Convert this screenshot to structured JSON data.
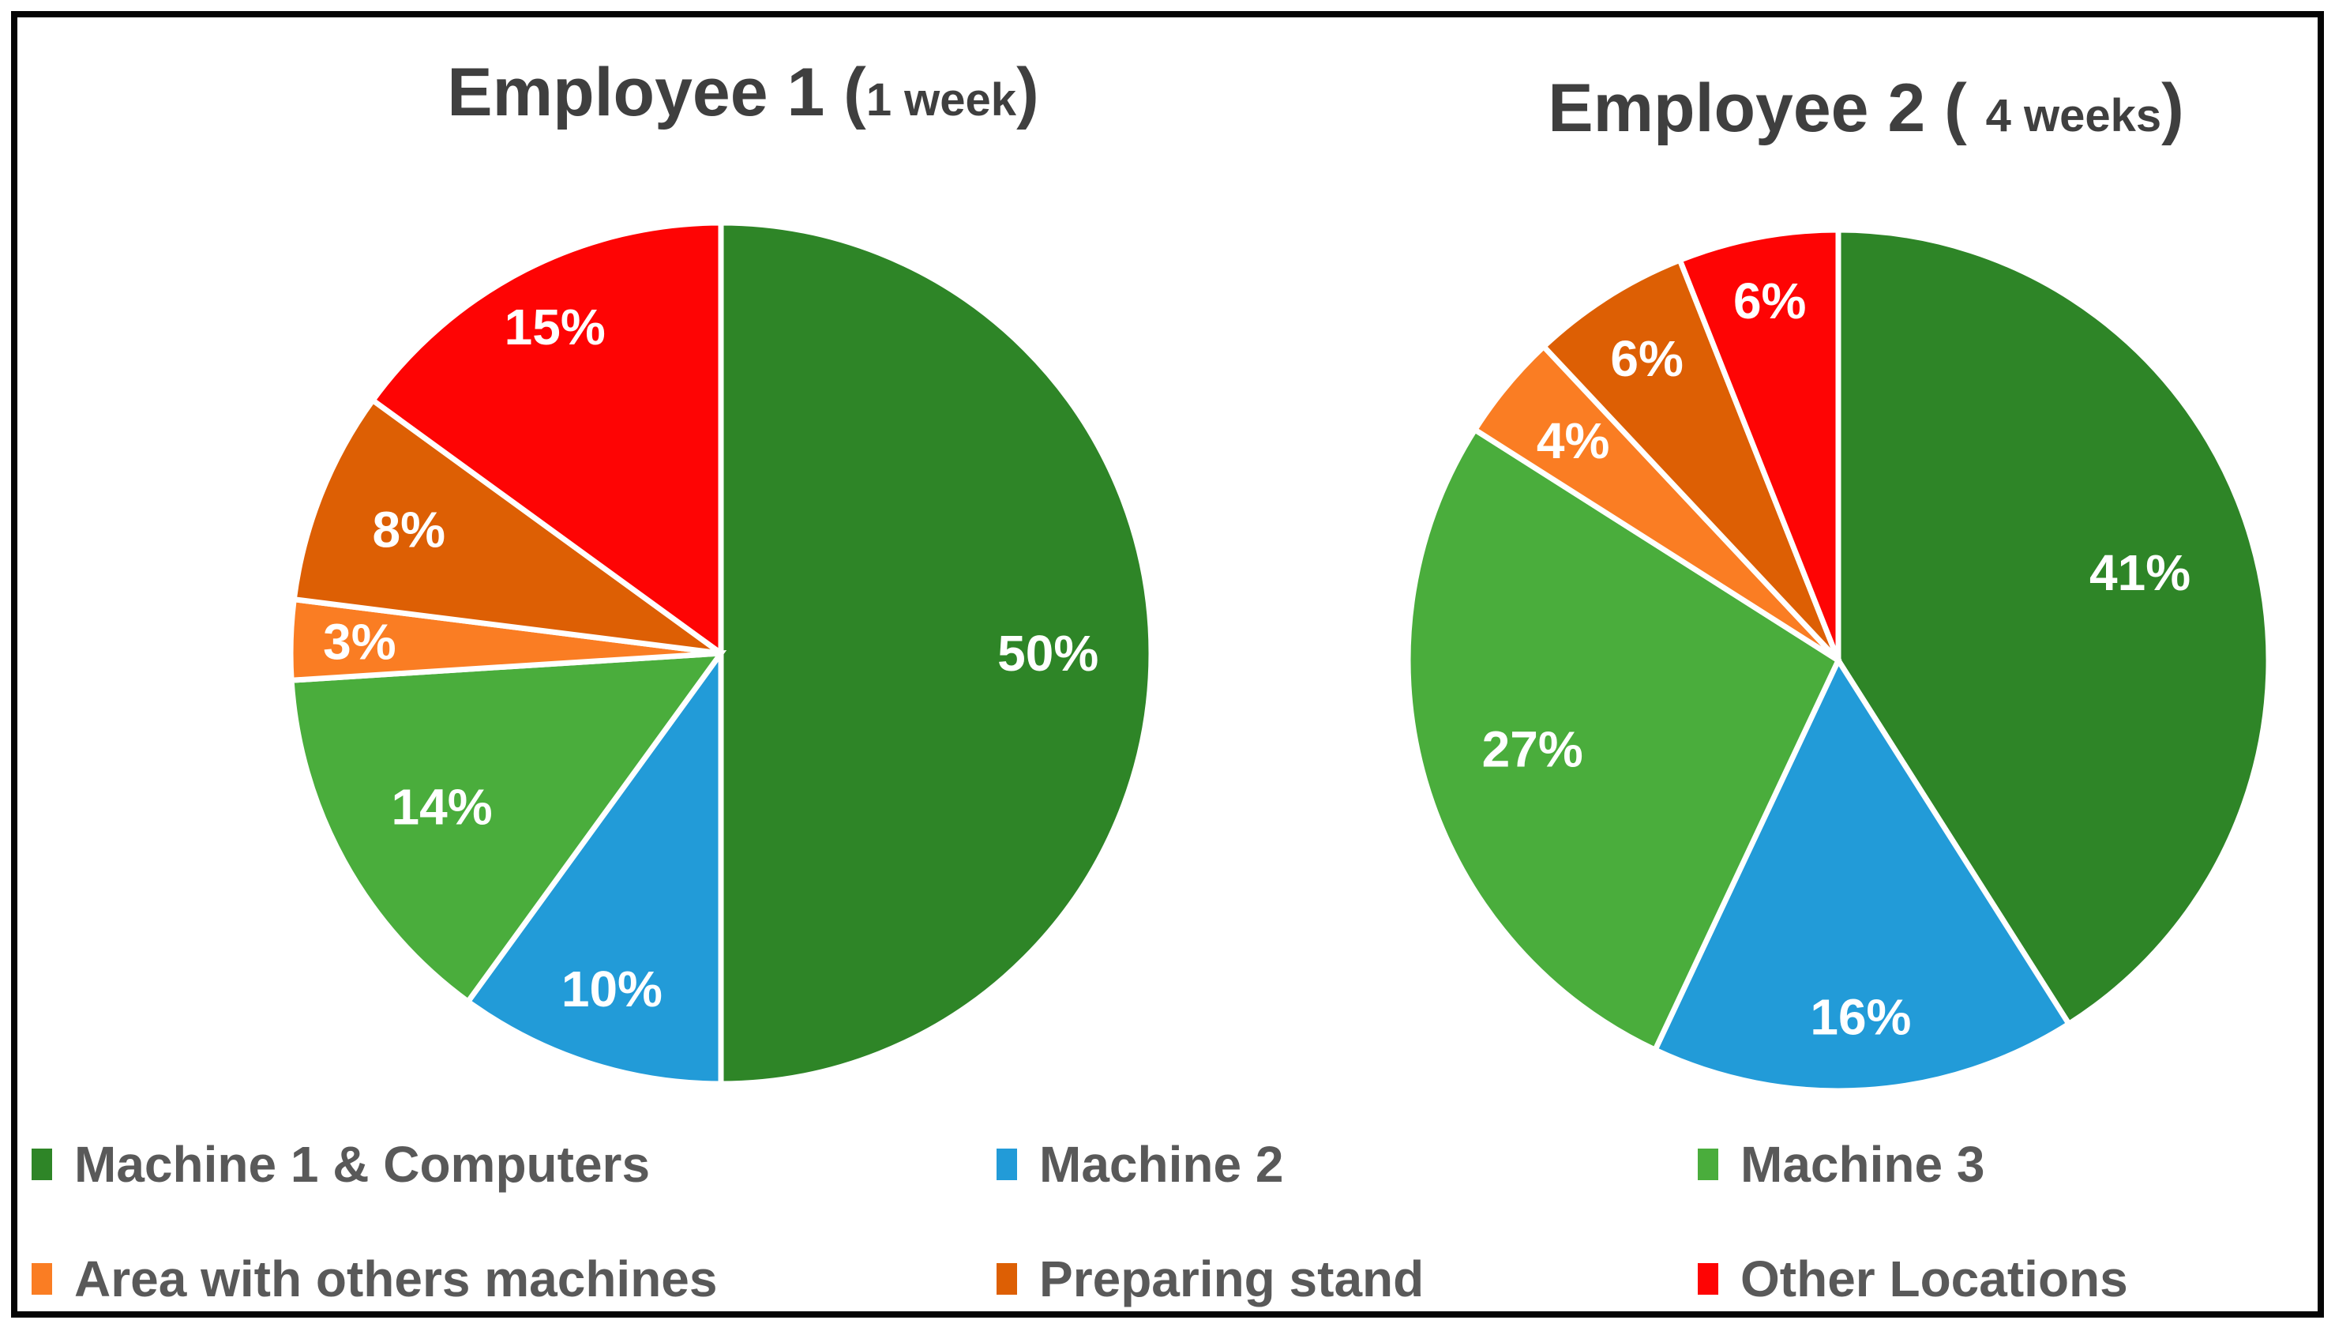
{
  "figure": {
    "background": "#ffffff",
    "border_color": "#050505",
    "title_text_color": "#3f3f3f",
    "legend_text_color": "#595959",
    "slice_label_color": "#ffffff"
  },
  "chart_data": [
    {
      "type": "pie",
      "title": "Employee 1 (1 week)",
      "title_parts": {
        "main": "Employee 1 (",
        "small": "1 week",
        "close": ")"
      },
      "categories": [
        "Machine 1 & Computers",
        "Machine 2",
        "Machine 3",
        "Area with others machines",
        "Preparing stand",
        "Other Locations"
      ],
      "values": [
        50,
        10,
        14,
        3,
        8,
        15
      ],
      "unit": "%",
      "slice_labels": [
        "50%",
        "10%",
        "14%",
        "3%",
        "8%",
        "15%"
      ],
      "colors": [
        "#2e8527",
        "#229bd8",
        "#4aad3c",
        "#fa7d23",
        "#dd5f04",
        "#fe0404"
      ],
      "start_angle_deg": 0,
      "direction": "clockwise",
      "legend_position": "bottom"
    },
    {
      "type": "pie",
      "title": "Employee 2 ( 4 weeks)",
      "title_parts": {
        "main": "Employee 2 ( ",
        "small": "4 weeks",
        "close": ")"
      },
      "categories": [
        "Machine 1 & Computers",
        "Machine 2",
        "Machine 3",
        "Area with others machines",
        "Preparing stand",
        "Other Locations"
      ],
      "values": [
        41,
        16,
        27,
        4,
        6,
        6
      ],
      "unit": "%",
      "slice_labels": [
        "41%",
        "16%",
        "27%",
        "4%",
        "6%",
        "6%"
      ],
      "colors": [
        "#2e8527",
        "#229bd8",
        "#4aad3c",
        "#fa7d23",
        "#dd5f04",
        "#fe0404"
      ],
      "start_angle_deg": 0,
      "direction": "clockwise",
      "legend_position": "bottom"
    }
  ],
  "legend": {
    "items": [
      {
        "label": "Machine 1 & Computers",
        "color": "#2e8527"
      },
      {
        "label": "Machine 2",
        "color": "#229bd8"
      },
      {
        "label": "Machine 3",
        "color": "#4aad3c"
      },
      {
        "label": "Area with others machines",
        "color": "#fa7d23"
      },
      {
        "label": "Preparing stand",
        "color": "#dd5f04"
      },
      {
        "label": "Other Locations",
        "color": "#fe0404"
      }
    ]
  }
}
